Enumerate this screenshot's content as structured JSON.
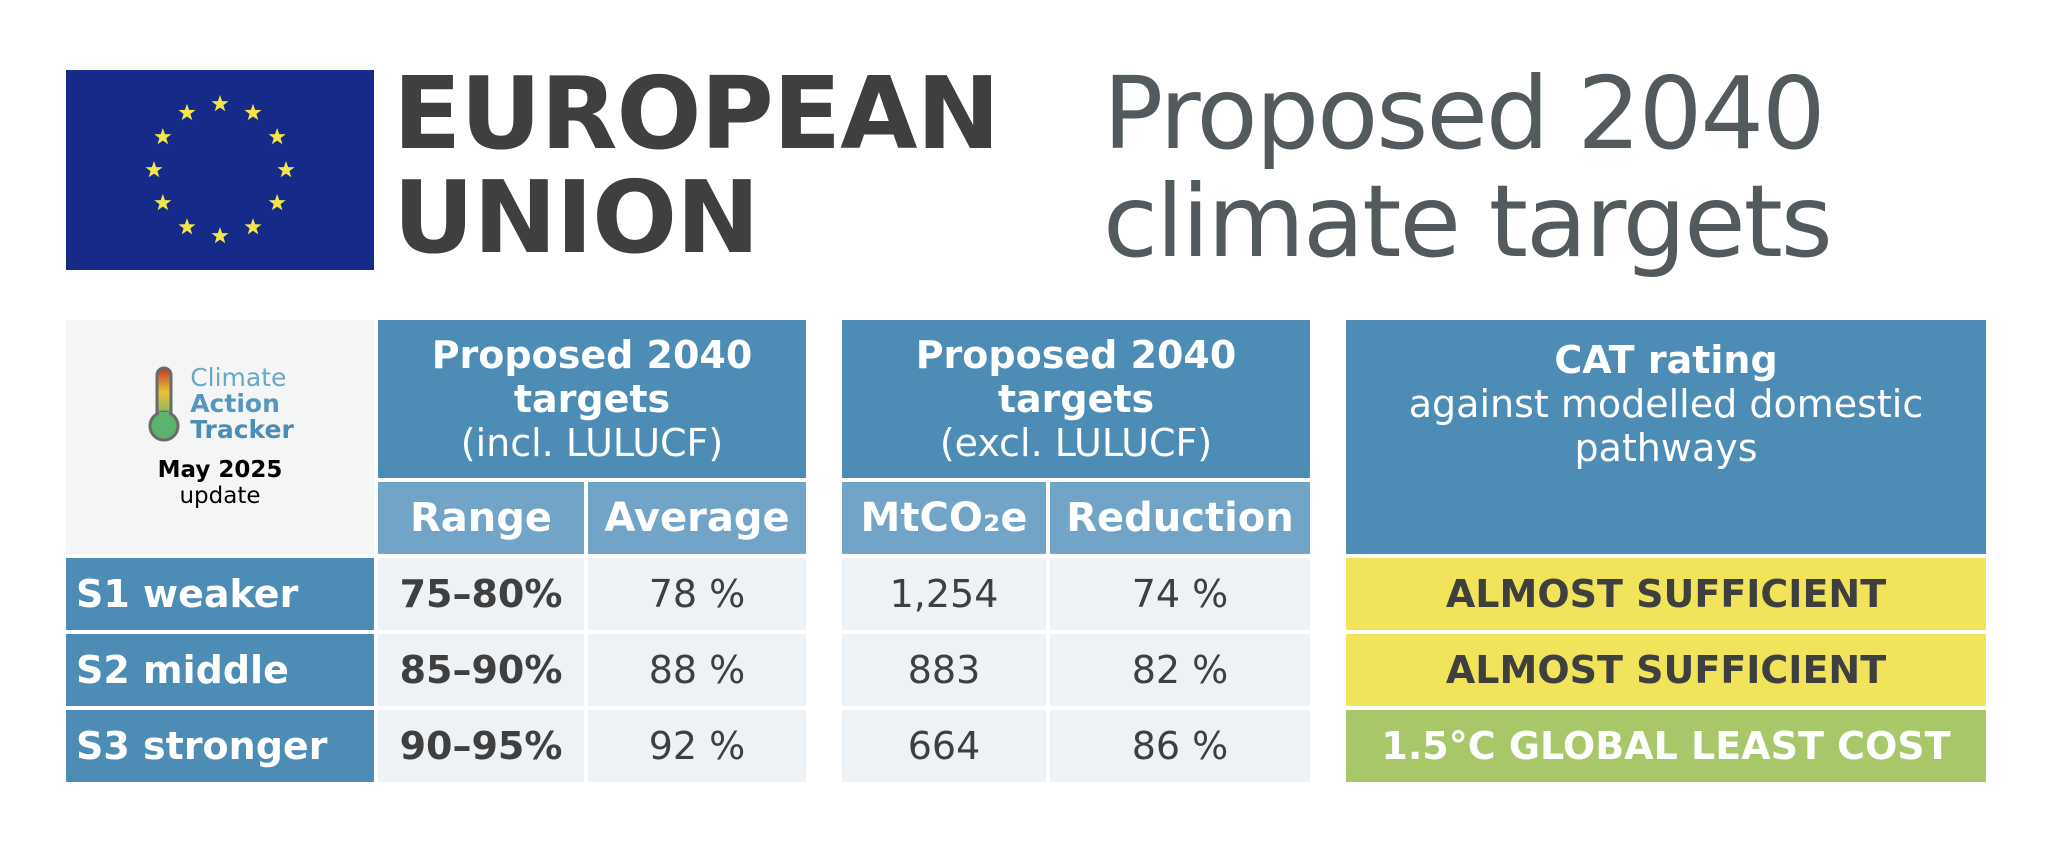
{
  "header": {
    "region_line1": "EUROPEAN",
    "region_line2": "UNION",
    "title_line1": "Proposed 2040",
    "title_line2": "climate targets"
  },
  "logo": {
    "word1": "Climate",
    "word2": "Action",
    "word3": "Tracker",
    "update_month": "May 2025",
    "update_word": "update"
  },
  "table": {
    "group1": {
      "title_line1": "Proposed 2040",
      "title_line2": "targets",
      "subtitle": "(incl. LULUCF)",
      "col1": "Range",
      "col2": "Average"
    },
    "group2": {
      "title_line1": "Proposed 2040",
      "title_line2": "targets",
      "subtitle": "(excl. LULUCF)",
      "col1": "MtCO₂e",
      "col2": "Reduction"
    },
    "group3": {
      "title": "CAT rating",
      "subtitle_line1": "against modelled domestic",
      "subtitle_line2": "pathways"
    },
    "rows": [
      {
        "label": "S1 weaker",
        "range": "75–80%",
        "average": "78 %",
        "mtco2e": "1,254",
        "reduction": "74 %",
        "rating": "ALMOST SUFFICIENT"
      },
      {
        "label": "S2 middle",
        "range": "85–90%",
        "average": "88 %",
        "mtco2e": "883",
        "reduction": "82 %",
        "rating": "ALMOST SUFFICIENT"
      },
      {
        "label": "S3 stronger",
        "range": "90–95%",
        "average": "92 %",
        "mtco2e": "664",
        "reduction": "86 %",
        "rating": "1.5°C GLOBAL LEAST COST"
      }
    ]
  },
  "colors": {
    "header_blue": "#4d8db5",
    "subheader_blue": "#71a4c6",
    "cell_bg": "#edf2f7",
    "almost_sufficient": "#f1e35a",
    "global_least_cost": "#a7c768",
    "flag_blue": "#162a8a",
    "flag_stars": "#f2e64a"
  },
  "icons": {
    "flag": "eu-flag-icon",
    "thermometer": "thermometer-icon"
  }
}
